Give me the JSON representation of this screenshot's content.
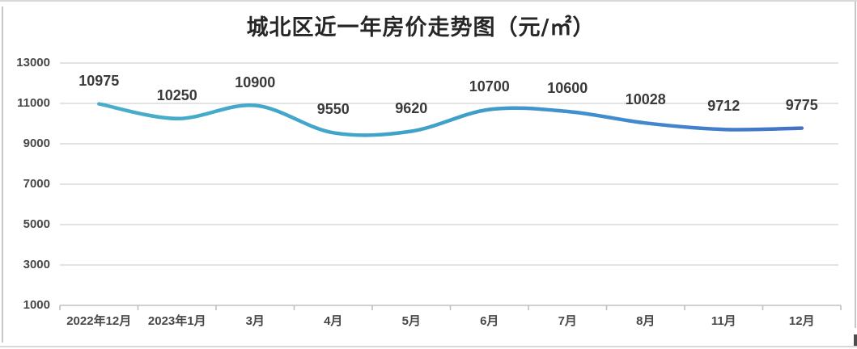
{
  "chart_data": {
    "type": "line",
    "title": "城北区近一年房价走势图（元/㎡）",
    "categories": [
      "2022年12月",
      "2023年1月",
      "3月",
      "4月",
      "5月",
      "6月",
      "7月",
      "8月",
      "11月",
      "12月"
    ],
    "values": [
      10975,
      10250,
      10900,
      9550,
      9620,
      10700,
      10600,
      10028,
      9712,
      9775
    ],
    "data_labels": [
      "10975",
      "10250",
      "10900",
      "9550",
      "9620",
      "10700",
      "10600",
      "10028",
      "9712",
      "9775"
    ],
    "yticks": [
      13000,
      11000,
      9000,
      7000,
      5000,
      3000,
      1000
    ],
    "ylim": [
      1000,
      13000
    ],
    "xlabel": "",
    "ylabel": "",
    "grid": true,
    "legend": "none",
    "smoothed": true,
    "colors": {
      "line_gradient_start": "#47aeca",
      "line_gradient_mid": "#3fa0c9",
      "line_gradient_end": "#4472c4",
      "gridline": "#dadada",
      "axis_line": "#c0c0c0",
      "title_text": "#262626",
      "axis_text": "#474747",
      "data_label_text": "#3a3a3a"
    }
  }
}
